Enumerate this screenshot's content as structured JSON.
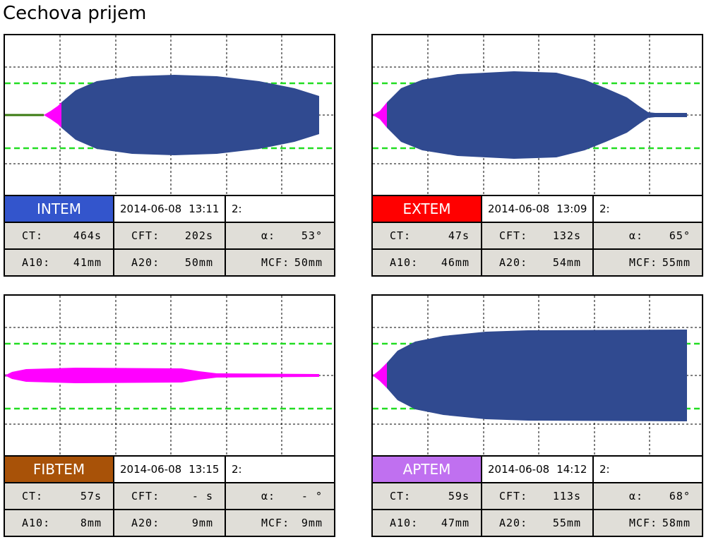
{
  "header": {
    "title": "Cechova prijem"
  },
  "panels": [
    {
      "name": "INTEM",
      "date": "2014-06-08",
      "time": "13:11",
      "channel": "2:",
      "params": [
        [
          {
            "label": "CT:",
            "value": "464s"
          },
          {
            "label": "CFT:",
            "value": "202s"
          },
          {
            "label": "α:",
            "value": "53°"
          }
        ],
        [
          {
            "label": "A10:",
            "value": "41mm"
          },
          {
            "label": "A20:",
            "value": "50mm"
          },
          {
            "label": "MCF:",
            "value": "50mm"
          }
        ]
      ]
    },
    {
      "name": "EXTEM",
      "date": "2014-06-08",
      "time": "13:09",
      "channel": "2:",
      "params": [
        [
          {
            "label": "CT:",
            "value": "47s"
          },
          {
            "label": "CFT:",
            "value": "132s"
          },
          {
            "label": "α:",
            "value": "65°"
          }
        ],
        [
          {
            "label": "A10:",
            "value": "46mm"
          },
          {
            "label": "A20:",
            "value": "54mm"
          },
          {
            "label": "MCF:",
            "value": "55mm"
          }
        ]
      ]
    },
    {
      "name": "FIBTEM",
      "date": "2014-06-08",
      "time": "13:15",
      "channel": "2:",
      "params": [
        [
          {
            "label": "CT:",
            "value": "57s"
          },
          {
            "label": "CFT:",
            "value": "- s"
          },
          {
            "label": "α:",
            "value": "- °"
          }
        ],
        [
          {
            "label": "A10:",
            "value": "8mm"
          },
          {
            "label": "A20:",
            "value": "9mm"
          },
          {
            "label": "MCF:",
            "value": "9mm"
          }
        ]
      ]
    },
    {
      "name": "APTEM",
      "date": "2014-06-08",
      "time": "14:12",
      "channel": "2:",
      "params": [
        [
          {
            "label": "CT:",
            "value": "59s"
          },
          {
            "label": "CFT:",
            "value": "113s"
          },
          {
            "label": "α:",
            "value": "68°"
          }
        ],
        [
          {
            "label": "A10:",
            "value": "47mm"
          },
          {
            "label": "A20:",
            "value": "55mm"
          },
          {
            "label": "MCF:",
            "value": "58mm"
          }
        ]
      ]
    }
  ]
}
